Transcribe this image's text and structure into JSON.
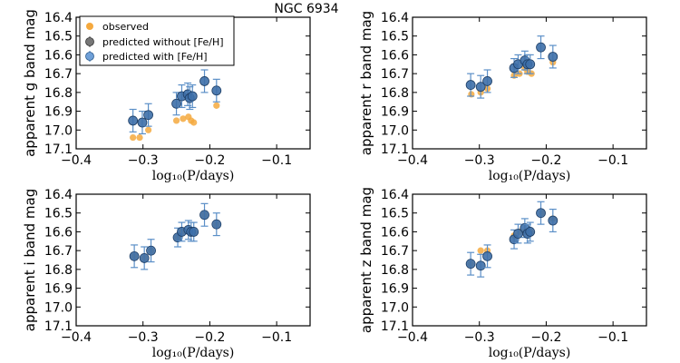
{
  "figure_title": "NGC 6934",
  "legend": {
    "entries": [
      "observed",
      "predicted without [Fe/H]",
      "predicted with [Fe/H]"
    ],
    "placement": "top-left of first panel"
  },
  "colors": {
    "observed": "#f5a93e",
    "predicted_without_marker": "#555555",
    "predicted_with_marker": "#3d6fa8",
    "predicted_with_edge": "#1f3f66",
    "errorbar_with": "#5b8fc7",
    "errorbar_without": "#666666"
  },
  "xlabel": "log₁₀(P/days)",
  "xlim": [
    -0.4,
    -0.05
  ],
  "xticks": [
    -0.4,
    -0.3,
    -0.2,
    -0.1
  ],
  "xtick_labels": [
    "−0.4",
    "−0.3",
    "−0.2",
    "−0.1"
  ],
  "yticks": [
    16.4,
    16.5,
    16.6,
    16.7,
    16.8,
    16.9,
    17.0,
    17.1
  ],
  "ytick_labels": [
    "16.4",
    "16.5",
    "16.6",
    "16.7",
    "16.8",
    "16.9",
    "17.0",
    "17.1"
  ],
  "chart_data": [
    {
      "type": "scatter",
      "band": "g",
      "ylabel": "apparent g band mag",
      "ylim": [
        17.1,
        16.4
      ],
      "observed": {
        "x": [
          -0.315,
          -0.305,
          -0.292,
          -0.25,
          -0.24,
          -0.232,
          -0.228,
          -0.224,
          -0.19
        ],
        "y": [
          17.04,
          17.04,
          17.0,
          16.95,
          16.94,
          16.93,
          16.95,
          16.96,
          16.87
        ]
      },
      "predicted_with": {
        "x": [
          -0.315,
          -0.301,
          -0.292,
          -0.25,
          -0.242,
          -0.233,
          -0.23,
          -0.226,
          -0.208,
          -0.19
        ],
        "y": [
          16.95,
          16.96,
          16.92,
          16.86,
          16.82,
          16.81,
          16.83,
          16.82,
          16.74,
          16.79
        ],
        "err": [
          0.06,
          0.06,
          0.06,
          0.06,
          0.06,
          0.06,
          0.06,
          0.06,
          0.06,
          0.06
        ]
      }
    },
    {
      "type": "scatter",
      "band": "r",
      "ylabel": "apparent r band mag",
      "ylim": [
        17.1,
        16.4
      ],
      "observed": {
        "x": [
          -0.312,
          -0.298,
          -0.288,
          -0.248,
          -0.24,
          -0.232,
          -0.228,
          -0.222,
          -0.19
        ],
        "y": [
          16.81,
          16.8,
          16.78,
          16.71,
          16.7,
          16.67,
          16.69,
          16.7,
          16.64
        ]
      },
      "predicted_with": {
        "x": [
          -0.313,
          -0.298,
          -0.288,
          -0.248,
          -0.242,
          -0.232,
          -0.228,
          -0.224,
          -0.208,
          -0.19
        ],
        "y": [
          16.76,
          16.77,
          16.74,
          16.67,
          16.65,
          16.63,
          16.65,
          16.65,
          16.56,
          16.61
        ],
        "err": [
          0.06,
          0.06,
          0.06,
          0.05,
          0.05,
          0.05,
          0.05,
          0.05,
          0.06,
          0.06
        ]
      }
    },
    {
      "type": "scatter",
      "band": "i",
      "ylabel": "apparent i band mag",
      "ylim": [
        17.1,
        16.4
      ],
      "observed": {
        "x": [
          -0.313,
          -0.298,
          -0.288,
          -0.248,
          -0.242,
          -0.228,
          -0.224,
          -0.208,
          -0.19
        ],
        "y": [
          16.73,
          16.74,
          16.7,
          16.63,
          16.6,
          16.6,
          16.6,
          16.51,
          16.56
        ]
      },
      "predicted_with": {
        "x": [
          -0.313,
          -0.298,
          -0.288,
          -0.248,
          -0.242,
          -0.232,
          -0.228,
          -0.224,
          -0.208,
          -0.19
        ],
        "y": [
          16.73,
          16.74,
          16.7,
          16.63,
          16.6,
          16.59,
          16.6,
          16.6,
          16.51,
          16.56
        ],
        "err": [
          0.06,
          0.06,
          0.06,
          0.05,
          0.05,
          0.05,
          0.05,
          0.05,
          0.06,
          0.06
        ]
      }
    },
    {
      "type": "scatter",
      "band": "z",
      "ylabel": "apparent z band mag",
      "ylim": [
        17.1,
        16.4
      ],
      "observed": {
        "x": [
          -0.313,
          -0.298,
          -0.288,
          -0.248,
          -0.24,
          -0.232,
          -0.228,
          -0.222,
          -0.206,
          -0.19
        ],
        "y": [
          16.77,
          16.7,
          16.7,
          16.62,
          16.6,
          16.6,
          16.6,
          16.6,
          16.5,
          16.53
        ]
      },
      "predicted_with": {
        "x": [
          -0.313,
          -0.298,
          -0.288,
          -0.248,
          -0.242,
          -0.232,
          -0.228,
          -0.224,
          -0.208,
          -0.19
        ],
        "y": [
          16.77,
          16.78,
          16.73,
          16.64,
          16.61,
          16.58,
          16.61,
          16.6,
          16.5,
          16.54
        ],
        "err": [
          0.06,
          0.06,
          0.06,
          0.05,
          0.05,
          0.05,
          0.05,
          0.05,
          0.06,
          0.06
        ]
      }
    }
  ]
}
